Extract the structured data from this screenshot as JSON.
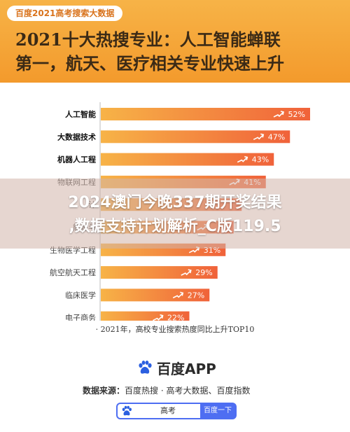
{
  "header": {
    "tag": "百度2021高考搜索大数据",
    "headline_line1": "2021十大热搜专业：人工智能蝉联",
    "headline_line2": "第一，航天、医疗相关专业快速上升"
  },
  "chart_data": {
    "type": "bar",
    "orientation": "horizontal",
    "categories": [
      "人工智能",
      "大数据技术",
      "机器人工程",
      "物联网工程",
      "计算机",
      "能源与环境",
      "生物医学工程",
      "航空航天工程",
      "临床医学",
      "电子商务"
    ],
    "category_labels": [
      "人工智能",
      "大数据技术",
      "机器人工程",
      "物联网工程",
      "计",
      "能源与",
      "生物医学工程",
      "航空航天工程",
      "临床医学",
      "电子商务"
    ],
    "bold_categories": [
      "人工智能",
      "大数据技术",
      "机器人工程"
    ],
    "values": [
      52,
      47,
      43,
      41,
      35,
      33,
      31,
      29,
      27,
      22
    ],
    "value_labels": [
      "52%",
      "47%",
      "43%",
      "41%",
      "",
      "",
      "31%",
      "29%",
      "27%",
      "22%"
    ],
    "xlim": [
      0,
      60
    ],
    "bar_color_start": "#f7b347",
    "bar_color_end": "#f0623a",
    "caption": "· 2021年，高校专业搜索热度同比上升TOP10"
  },
  "watermark": {
    "line1": "2024澳门今晚337期开奖结果",
    "line2": ",数据支持计划解析_C版119.5"
  },
  "footer": {
    "logo_icon": "baidu-paw-icon",
    "logo_text": "百度APP",
    "source_label": "数据来源：",
    "source_value": "百度热搜 · 高考大数据、百度指数",
    "search_query": "高考",
    "search_button": "百度一下"
  }
}
